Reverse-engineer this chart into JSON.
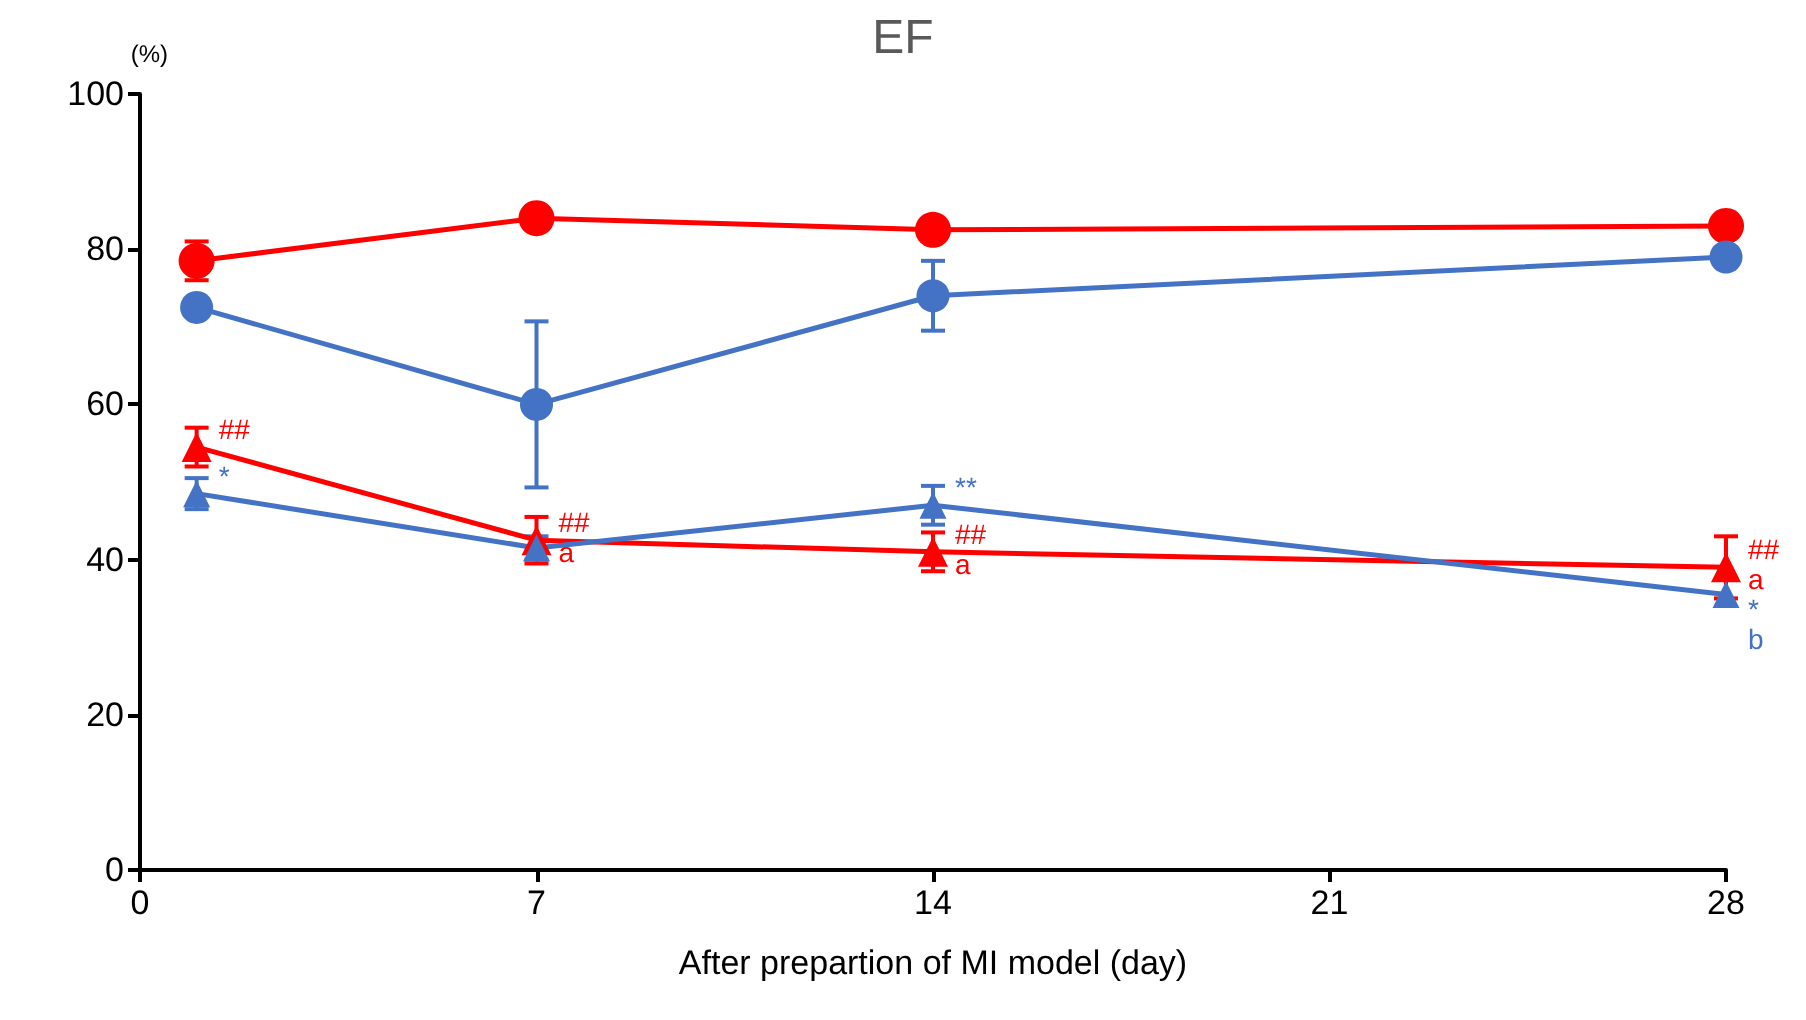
{
  "chart_data": {
    "type": "line",
    "title": "EF",
    "ylabel": "(%)",
    "xlabel": "After prepartion of MI model (day)",
    "x": [
      1,
      7,
      14,
      28
    ],
    "xlim": [
      0,
      28
    ],
    "xticks": [
      0,
      7,
      14,
      21,
      28
    ],
    "ylim": [
      0,
      100
    ],
    "yticks": [
      0,
      20,
      40,
      60,
      80,
      100
    ],
    "grid": false,
    "line_style": "solid",
    "series": [
      {
        "color": "#ff0000",
        "marker": "circle",
        "values": [
          78.5,
          84,
          82.5,
          83
        ],
        "errors": [
          2.5,
          null,
          null,
          null
        ]
      },
      {
        "color": "#4472c4",
        "marker": "circle",
        "values": [
          72.5,
          60,
          74,
          79
        ],
        "errors": [
          null,
          10.7,
          4.5,
          null
        ]
      },
      {
        "color": "#ff0000",
        "marker": "triangle",
        "values": [
          54.5,
          42.5,
          41,
          39
        ],
        "errors": [
          2.5,
          3,
          2.5,
          4
        ]
      },
      {
        "color": "#4472c4",
        "marker": "triangle",
        "values": [
          48.5,
          41.5,
          47,
          35.5
        ],
        "errors": [
          2,
          1.5,
          2.5,
          null
        ]
      }
    ],
    "annotations": [
      {
        "text": "##",
        "x": 1,
        "y": 54.5
      },
      {
        "text": "*",
        "x": 1,
        "y": 48.5
      },
      {
        "text": "##",
        "x": 7,
        "y": 42.5
      },
      {
        "text": "a",
        "x": 7,
        "y": 42.5
      },
      {
        "text": "**",
        "x": 14,
        "y": 47
      },
      {
        "text": "##",
        "x": 14,
        "y": 41
      },
      {
        "text": "a",
        "x": 14,
        "y": 41
      },
      {
        "text": "##",
        "x": 28,
        "y": 39
      },
      {
        "text": "a",
        "x": 28,
        "y": 39
      },
      {
        "text": "*",
        "x": 28,
        "y": 35.5
      },
      {
        "text": "b",
        "x": 28,
        "y": 35.5
      }
    ]
  }
}
